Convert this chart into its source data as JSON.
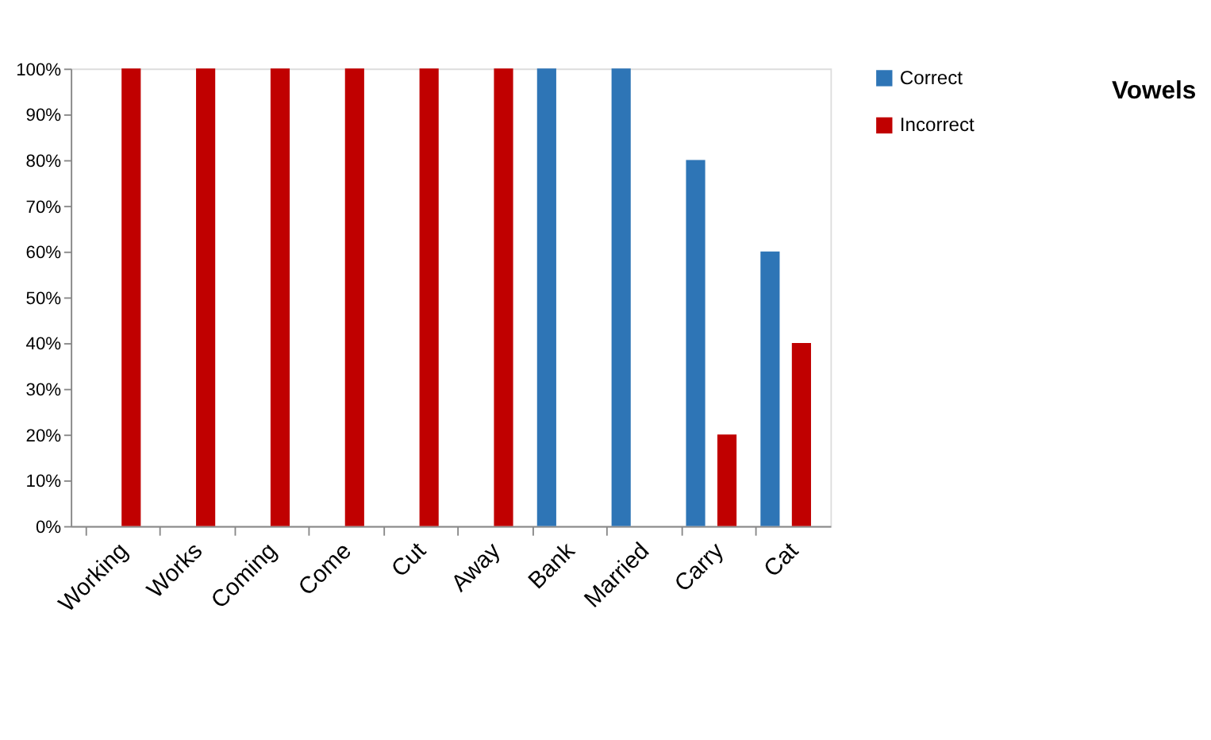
{
  "chart_data": {
    "type": "bar",
    "title": "Vowels",
    "categories": [
      "Working",
      "Works",
      "Coming",
      "Come",
      "Cut",
      "Away",
      "Bank",
      "Married",
      "Carry",
      "Cat"
    ],
    "series": [
      {
        "name": "Correct",
        "color": "#2e75b6",
        "values": [
          0,
          0,
          0,
          0,
          0,
          0,
          100,
          100,
          80,
          60
        ]
      },
      {
        "name": "Incorrect",
        "color": "#c00000",
        "values": [
          100,
          100,
          100,
          100,
          100,
          100,
          0,
          0,
          20,
          40
        ]
      }
    ],
    "ylim": [
      0,
      100
    ],
    "yticks": [
      {
        "value": 0,
        "label": "0%"
      },
      {
        "value": 10,
        "label": "10%"
      },
      {
        "value": 20,
        "label": "20%"
      },
      {
        "value": 30,
        "label": "30%"
      },
      {
        "value": 40,
        "label": "40%"
      },
      {
        "value": 50,
        "label": "50%"
      },
      {
        "value": 60,
        "label": "60%"
      },
      {
        "value": 70,
        "label": "70%"
      },
      {
        "value": 80,
        "label": "80%"
      },
      {
        "value": 90,
        "label": "90%"
      },
      {
        "value": 100,
        "label": "100%"
      }
    ],
    "grid": false,
    "legend": "right"
  }
}
